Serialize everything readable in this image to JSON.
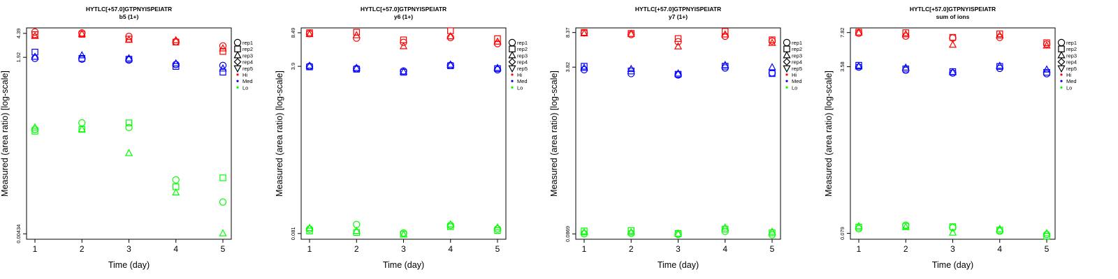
{
  "colors": {
    "Hi": "#ff0000",
    "Med": "#0000ff",
    "Lo": "#00ff00"
  },
  "legend": {
    "placement": "right",
    "items": [
      {
        "label": "rep1",
        "symbol": "circle-open"
      },
      {
        "label": "rep2",
        "symbol": "square-open"
      },
      {
        "label": "rep3",
        "symbol": "triangle-up-open"
      },
      {
        "label": "rep4",
        "symbol": "diamond-open"
      },
      {
        "label": "rep5",
        "symbol": "triangle-down-open"
      },
      {
        "label": "Hi",
        "symbol": "dot",
        "color": "#ff0000"
      },
      {
        "label": "Med",
        "symbol": "dot",
        "color": "#0000ff"
      },
      {
        "label": "Lo",
        "symbol": "dot",
        "color": "#00ff00"
      }
    ]
  },
  "chart_data": [
    {
      "type": "scatter",
      "title": "HYTLC[+57.0]GTPNYISPEIATR",
      "subtitle": "b5 (1+)",
      "xlabel": "Time (day)",
      "ylabel": "Measured (area ratio) [log-scale]",
      "x_ticks": [
        "1",
        "2",
        "3",
        "4",
        "5"
      ],
      "y_tick_labels": [
        "0.00434",
        "1.92",
        "4.39"
      ],
      "y_tick_values": [
        0.00434,
        1.92,
        4.39
      ],
      "ylim": [
        0.0036,
        5.3
      ],
      "y_scale": "log",
      "grid": false,
      "series": [
        {
          "name": "rep1",
          "level": "Hi",
          "x": [
            1,
            2,
            3,
            4,
            5
          ],
          "y": [
            4.6,
            4.45,
            3.95,
            3.3,
            2.85
          ]
        },
        {
          "name": "rep2",
          "level": "Hi",
          "x": [
            1,
            2,
            3,
            4,
            5
          ],
          "y": [
            4.2,
            4.25,
            3.6,
            3.25,
            2.35
          ]
        },
        {
          "name": "rep3",
          "level": "Hi",
          "x": [
            1,
            2,
            3,
            4,
            5
          ],
          "y": [
            4.0,
            4.3,
            3.5,
            3.45,
            2.6
          ]
        },
        {
          "name": "rep1",
          "level": "Med",
          "x": [
            1,
            2,
            3,
            4,
            5
          ],
          "y": [
            1.85,
            1.8,
            1.75,
            1.5,
            1.45
          ]
        },
        {
          "name": "rep2",
          "level": "Med",
          "x": [
            1,
            2,
            3,
            4,
            5
          ],
          "y": [
            2.3,
            1.85,
            1.8,
            1.4,
            1.15
          ]
        },
        {
          "name": "rep3",
          "level": "Med",
          "x": [
            1,
            2,
            3,
            4,
            5
          ],
          "y": [
            1.95,
            2.05,
            1.85,
            1.55,
            1.3
          ]
        },
        {
          "name": "rep1",
          "level": "Lo",
          "x": [
            1,
            2,
            3,
            4,
            5
          ],
          "y": [
            0.16,
            0.2,
            0.17,
            0.028,
            0.013
          ]
        },
        {
          "name": "rep2",
          "level": "Lo",
          "x": [
            1,
            2,
            3,
            4,
            5
          ],
          "y": [
            0.15,
            0.16,
            0.2,
            0.022,
            0.03
          ]
        },
        {
          "name": "rep3",
          "level": "Lo",
          "x": [
            1,
            2,
            3,
            4,
            5
          ],
          "y": [
            0.17,
            0.16,
            0.07,
            0.018,
            0.0044
          ]
        }
      ]
    },
    {
      "type": "scatter",
      "title": "HYTLC[+57.0]GTPNYISPEIATR",
      "subtitle": "y6 (1+)",
      "xlabel": "Time (day)",
      "ylabel": "Measured (area ratio) [log-scale]",
      "x_ticks": [
        "1",
        "2",
        "3",
        "4",
        "5"
      ],
      "y_tick_labels": [
        "0.081",
        "3.9",
        "8.49"
      ],
      "y_tick_values": [
        0.081,
        3.9,
        8.49
      ],
      "ylim": [
        0.071,
        9.5
      ],
      "y_scale": "log",
      "grid": false,
      "series": [
        {
          "name": "rep1",
          "level": "Hi",
          "x": [
            1,
            2,
            3,
            4,
            5
          ],
          "y": [
            8.3,
            7.5,
            6.8,
            7.6,
            6.6
          ]
        },
        {
          "name": "rep2",
          "level": "Hi",
          "x": [
            1,
            2,
            3,
            4,
            5
          ],
          "y": [
            8.5,
            8.6,
            7.2,
            8.9,
            7.4
          ]
        },
        {
          "name": "rep3",
          "level": "Hi",
          "x": [
            1,
            2,
            3,
            4,
            5
          ],
          "y": [
            8.2,
            8.0,
            6.2,
            7.8,
            6.9
          ]
        },
        {
          "name": "rep1",
          "level": "Med",
          "x": [
            1,
            2,
            3,
            4,
            5
          ],
          "y": [
            3.9,
            3.7,
            3.5,
            4.0,
            3.6
          ]
        },
        {
          "name": "rep2",
          "level": "Med",
          "x": [
            1,
            2,
            3,
            4,
            5
          ],
          "y": [
            3.85,
            3.65,
            3.4,
            3.95,
            3.7
          ]
        },
        {
          "name": "rep3",
          "level": "Med",
          "x": [
            1,
            2,
            3,
            4,
            5
          ],
          "y": [
            3.95,
            3.75,
            3.45,
            4.05,
            3.75
          ]
        },
        {
          "name": "rep1",
          "level": "Lo",
          "x": [
            1,
            2,
            3,
            4,
            5
          ],
          "y": [
            0.09,
            0.1,
            0.082,
            0.098,
            0.09
          ]
        },
        {
          "name": "rep2",
          "level": "Lo",
          "x": [
            1,
            2,
            3,
            4,
            5
          ],
          "y": [
            0.086,
            0.083,
            0.08,
            0.095,
            0.087
          ]
        },
        {
          "name": "rep3",
          "level": "Lo",
          "x": [
            1,
            2,
            3,
            4,
            5
          ],
          "y": [
            0.092,
            0.086,
            0.079,
            0.1,
            0.093
          ]
        }
      ]
    },
    {
      "type": "scatter",
      "title": "HYTLC[+57.0]GTPNYISPEIATR",
      "subtitle": "y7 (1+)",
      "xlabel": "Time (day)",
      "ylabel": "Measured (area ratio) [log-scale]",
      "x_ticks": [
        "1",
        "2",
        "3",
        "4",
        "5"
      ],
      "y_tick_labels": [
        "0.0869",
        "3.82",
        "8.37"
      ],
      "y_tick_values": [
        0.0869,
        3.82,
        8.37
      ],
      "ylim": [
        0.077,
        9.3
      ],
      "y_scale": "log",
      "grid": false,
      "series": [
        {
          "name": "rep1",
          "level": "Hi",
          "x": [
            1,
            2,
            3,
            4,
            5
          ],
          "y": [
            8.3,
            8.0,
            6.8,
            7.7,
            6.9
          ]
        },
        {
          "name": "rep2",
          "level": "Hi",
          "x": [
            1,
            2,
            3,
            4,
            5
          ],
          "y": [
            8.4,
            8.2,
            7.3,
            8.6,
            7.1
          ]
        },
        {
          "name": "rep3",
          "level": "Hi",
          "x": [
            1,
            2,
            3,
            4,
            5
          ],
          "y": [
            8.2,
            8.1,
            6.1,
            8.0,
            6.6
          ]
        },
        {
          "name": "rep1",
          "level": "Med",
          "x": [
            1,
            2,
            3,
            4,
            5
          ],
          "y": [
            3.6,
            3.3,
            3.2,
            3.75,
            3.35
          ]
        },
        {
          "name": "rep2",
          "level": "Med",
          "x": [
            1,
            2,
            3,
            4,
            5
          ],
          "y": [
            3.9,
            3.5,
            3.25,
            3.9,
            3.3
          ]
        },
        {
          "name": "rep3",
          "level": "Med",
          "x": [
            1,
            2,
            3,
            4,
            5
          ],
          "y": [
            3.75,
            3.65,
            3.3,
            4.0,
            3.8
          ]
        },
        {
          "name": "rep1",
          "level": "Lo",
          "x": [
            1,
            2,
            3,
            4,
            5
          ],
          "y": [
            0.087,
            0.088,
            0.086,
            0.092,
            0.085
          ]
        },
        {
          "name": "rep2",
          "level": "Lo",
          "x": [
            1,
            2,
            3,
            4,
            5
          ],
          "y": [
            0.093,
            0.094,
            0.088,
            0.097,
            0.089
          ]
        },
        {
          "name": "rep3",
          "level": "Lo",
          "x": [
            1,
            2,
            3,
            4,
            5
          ],
          "y": [
            0.09,
            0.09,
            0.087,
            0.1,
            0.091
          ]
        }
      ]
    },
    {
      "type": "scatter",
      "title": "HYTLC[+57.0]GTPNYISPEIATR",
      "subtitle": "sum of ions",
      "xlabel": "Time (day)",
      "ylabel": "Measured (area ratio) [log-scale]",
      "x_ticks": [
        "1",
        "2",
        "3",
        "4",
        "5"
      ],
      "y_tick_labels": [
        "0.079",
        "3.58",
        "7.82"
      ],
      "y_tick_values": [
        0.079,
        3.58,
        7.82
      ],
      "ylim": [
        0.069,
        8.7
      ],
      "y_scale": "log",
      "grid": false,
      "series": [
        {
          "name": "rep1",
          "level": "Hi",
          "x": [
            1,
            2,
            3,
            4,
            5
          ],
          "y": [
            7.7,
            7.2,
            6.9,
            7.0,
            6.0
          ]
        },
        {
          "name": "rep2",
          "level": "Hi",
          "x": [
            1,
            2,
            3,
            4,
            5
          ],
          "y": [
            7.9,
            7.8,
            7.0,
            7.6,
            6.2
          ]
        },
        {
          "name": "rep3",
          "level": "Hi",
          "x": [
            1,
            2,
            3,
            4,
            5
          ],
          "y": [
            7.8,
            7.5,
            5.9,
            7.3,
            5.8
          ]
        },
        {
          "name": "rep1",
          "level": "Med",
          "x": [
            1,
            2,
            3,
            4,
            5
          ],
          "y": [
            3.55,
            3.3,
            3.1,
            3.45,
            3.05
          ]
        },
        {
          "name": "rep2",
          "level": "Med",
          "x": [
            1,
            2,
            3,
            4,
            5
          ],
          "y": [
            3.7,
            3.4,
            3.2,
            3.6,
            3.15
          ]
        },
        {
          "name": "rep3",
          "level": "Med",
          "x": [
            1,
            2,
            3,
            4,
            5
          ],
          "y": [
            3.6,
            3.5,
            3.15,
            3.65,
            3.35
          ]
        },
        {
          "name": "rep1",
          "level": "Lo",
          "x": [
            1,
            2,
            3,
            4,
            5
          ],
          "y": [
            0.088,
            0.095,
            0.09,
            0.083,
            0.077
          ]
        },
        {
          "name": "rep2",
          "level": "Lo",
          "x": [
            1,
            2,
            3,
            4,
            5
          ],
          "y": [
            0.091,
            0.093,
            0.092,
            0.085,
            0.074
          ]
        },
        {
          "name": "rep3",
          "level": "Lo",
          "x": [
            1,
            2,
            3,
            4,
            5
          ],
          "y": [
            0.093,
            0.091,
            0.08,
            0.087,
            0.079
          ]
        }
      ]
    }
  ]
}
